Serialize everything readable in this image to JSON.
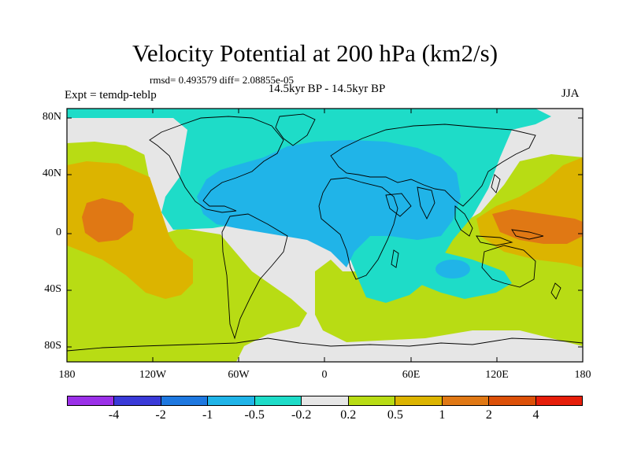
{
  "title": "Velocity Potential at 200 hPa (km2/s)",
  "stats": "rmsd= 0.493579 diff= 2.08855e-05",
  "subtitle": "14.5kyr BP - 14.5kyr BP",
  "left_label": "Expt = temdp-teblp",
  "right_label": "JJA",
  "y_ticks": [
    "80N",
    "40N",
    "0",
    "40S",
    "80S"
  ],
  "x_ticks": [
    "180",
    "120W",
    "60W",
    "0",
    "60E",
    "120E",
    "180"
  ],
  "colorbar": {
    "colors": [
      "#9b30e8",
      "#3a3ad8",
      "#1e78e0",
      "#20b4e8",
      "#1edcc8",
      "#e6e6e6",
      "#b8dc14",
      "#dcb400",
      "#e07814",
      "#dc5008",
      "#e61e0a"
    ],
    "labels": [
      "-4",
      "-2",
      "-1",
      "-0.5",
      "-0.2",
      "0.2",
      "0.5",
      "1",
      "2",
      "4"
    ]
  },
  "field_colors": {
    "cyan": "#1edcc8",
    "light_blue": "#20b4e8",
    "gray": "#e6e6e6",
    "yellow_green": "#b8dc14",
    "gold": "#dcb400",
    "orange": "#e07814"
  }
}
